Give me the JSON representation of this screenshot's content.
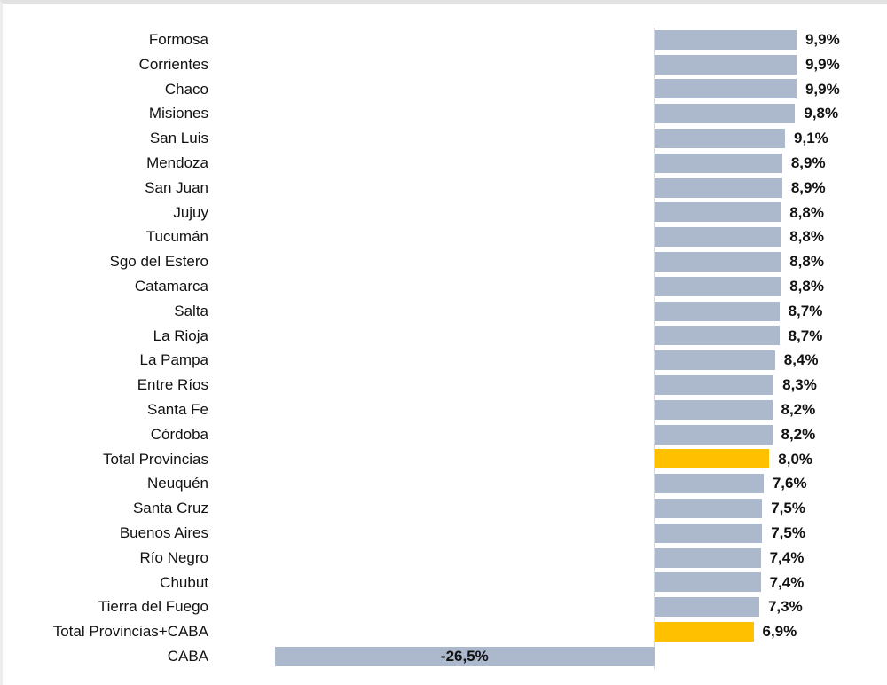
{
  "chart_data": {
    "type": "bar",
    "orientation": "horizontal",
    "unit": "%",
    "decimal_separator": ",",
    "grid": false,
    "legend": null,
    "baseline": 0,
    "xlim": [
      -26.5,
      9.9
    ],
    "categories": [
      "Formosa",
      "Corrientes",
      "Chaco",
      "Misiones",
      "San Luis",
      "Mendoza",
      "San Juan",
      "Jujuy",
      "Tucumán",
      "Sgo del Estero",
      "Catamarca",
      "Salta",
      "La Rioja",
      "La Pampa",
      "Entre Ríos",
      "Santa Fe",
      "Córdoba",
      "Total Provincias",
      "Neuquén",
      "Santa Cruz",
      "Buenos Aires",
      "Río Negro",
      "Chubut",
      "Tierra del Fuego",
      "Total Provincias+CABA",
      "CABA"
    ],
    "values": [
      9.9,
      9.9,
      9.9,
      9.8,
      9.1,
      8.9,
      8.9,
      8.8,
      8.8,
      8.8,
      8.8,
      8.7,
      8.7,
      8.4,
      8.3,
      8.2,
      8.2,
      8.0,
      7.6,
      7.5,
      7.5,
      7.4,
      7.4,
      7.3,
      6.9,
      -26.5
    ],
    "value_labels": [
      "9,9%",
      "9,9%",
      "9,9%",
      "9,8%",
      "9,1%",
      "8,9%",
      "8,9%",
      "8,8%",
      "8,8%",
      "8,8%",
      "8,8%",
      "8,7%",
      "8,7%",
      "8,4%",
      "8,3%",
      "8,2%",
      "8,2%",
      "8,0%",
      "7,6%",
      "7,5%",
      "7,5%",
      "7,4%",
      "7,4%",
      "7,3%",
      "6,9%",
      "-26,5%"
    ],
    "highlight_indices": [
      17,
      24
    ],
    "colors": {
      "bar": "#ACB8CB",
      "highlight": "#FFC000",
      "text": "#121212",
      "axis": "#D8D8D8",
      "background": "#FFFFFF"
    }
  }
}
